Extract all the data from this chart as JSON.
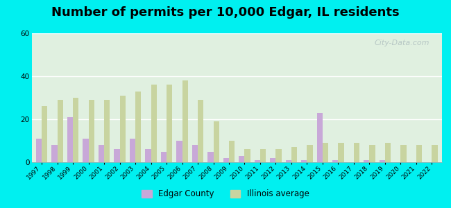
{
  "title": "Number of permits per 10,000 Edgar, IL residents",
  "years": [
    1997,
    1998,
    1999,
    2000,
    2001,
    2002,
    2003,
    2004,
    2005,
    2006,
    2007,
    2008,
    2009,
    2010,
    2011,
    2012,
    2013,
    2014,
    2015,
    2016,
    2017,
    2018,
    2019,
    2020,
    2021,
    2022
  ],
  "edgar": [
    11,
    8,
    21,
    11,
    8,
    6,
    11,
    6,
    5,
    10,
    8,
    5,
    2,
    3,
    1,
    2,
    1,
    1,
    23,
    1,
    0,
    1,
    1,
    0,
    0,
    0
  ],
  "illinois": [
    26,
    29,
    30,
    29,
    29,
    31,
    33,
    36,
    36,
    38,
    29,
    19,
    10,
    6,
    6,
    6,
    7,
    8,
    9,
    9,
    9,
    8,
    9,
    8,
    8,
    8
  ],
  "edgar_color": "#c8a8d8",
  "illinois_color": "#c8d4a0",
  "bg_outer": "#00f0f0",
  "bg_chart": "#e0f0e0",
  "ylim": [
    0,
    60
  ],
  "yticks": [
    0,
    20,
    40,
    60
  ],
  "title_fontsize": 13,
  "watermark": "City-Data.com",
  "legend_edgar": "Edgar County",
  "legend_illinois": "Illinois average"
}
